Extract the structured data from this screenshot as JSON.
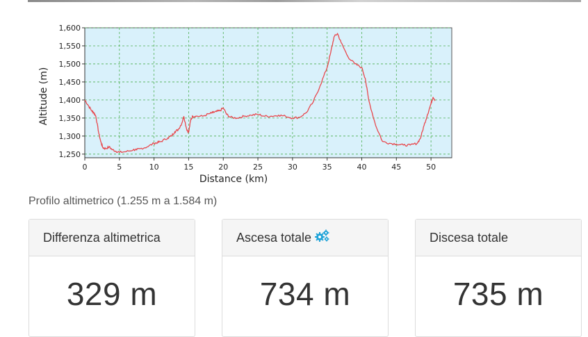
{
  "chart_data": {
    "type": "line",
    "xlabel": "Distance (km)",
    "ylabel": "Altitude (m)",
    "xlim": [
      0,
      53
    ],
    "ylim": [
      1240,
      1600
    ],
    "xticks": [
      0,
      5,
      10,
      15,
      20,
      25,
      30,
      35,
      40,
      45,
      50
    ],
    "yticks": [
      1250,
      1300,
      1350,
      1400,
      1450,
      1500,
      1550,
      1600
    ],
    "ytick_labels": [
      "1,250",
      "1,300",
      "1,350",
      "1,400",
      "1,450",
      "1,500",
      "1,550",
      "1,600"
    ],
    "grid": true,
    "background": "#d9f1fb",
    "line_color": "#e8474c",
    "series": [
      {
        "x": [
          0,
          0.5,
          1,
          1.3,
          1.6,
          2,
          2.3,
          2.6,
          3,
          3.5,
          4,
          4.5,
          5,
          6,
          7,
          7.5,
          8,
          9,
          10,
          10.5,
          11,
          12,
          12.5,
          13,
          13.5,
          14,
          14.3,
          14.7,
          15,
          15.3,
          15.6,
          16,
          17,
          18,
          18.5,
          19,
          19.5,
          20,
          20.5,
          21,
          22,
          23,
          24,
          25,
          26,
          27,
          28,
          29,
          30,
          31,
          32,
          33,
          34,
          35,
          35.5,
          36,
          36.5,
          37,
          38,
          39,
          40,
          40.5,
          41,
          42,
          43,
          44,
          45,
          46,
          47,
          48,
          48.5,
          49,
          49.5,
          50,
          50.3,
          50.6
        ],
        "y": [
          1400,
          1385,
          1370,
          1365,
          1355,
          1310,
          1285,
          1268,
          1265,
          1270,
          1262,
          1258,
          1255,
          1257,
          1262,
          1262,
          1265,
          1270,
          1280,
          1282,
          1285,
          1295,
          1300,
          1312,
          1318,
          1335,
          1355,
          1320,
          1310,
          1345,
          1355,
          1355,
          1355,
          1362,
          1365,
          1368,
          1370,
          1378,
          1360,
          1352,
          1350,
          1355,
          1358,
          1360,
          1355,
          1355,
          1358,
          1355,
          1350,
          1352,
          1365,
          1395,
          1440,
          1490,
          1530,
          1575,
          1584,
          1560,
          1520,
          1500,
          1490,
          1460,
          1400,
          1330,
          1285,
          1280,
          1278,
          1275,
          1275,
          1280,
          1295,
          1330,
          1360,
          1390,
          1408,
          1400
        ]
      }
    ]
  },
  "caption": "Profilo altimetrico (1.255 m a 1.584 m)",
  "stats": [
    {
      "label": "Differenza altimetrica",
      "value": "329 m",
      "icon": null
    },
    {
      "label": "Ascesa totale",
      "value": "734 m",
      "icon": "gears-icon"
    },
    {
      "label": "Discesa totale",
      "value": "735 m",
      "icon": null
    }
  ],
  "colors": {
    "accent_icon": "#1fa3d8"
  }
}
